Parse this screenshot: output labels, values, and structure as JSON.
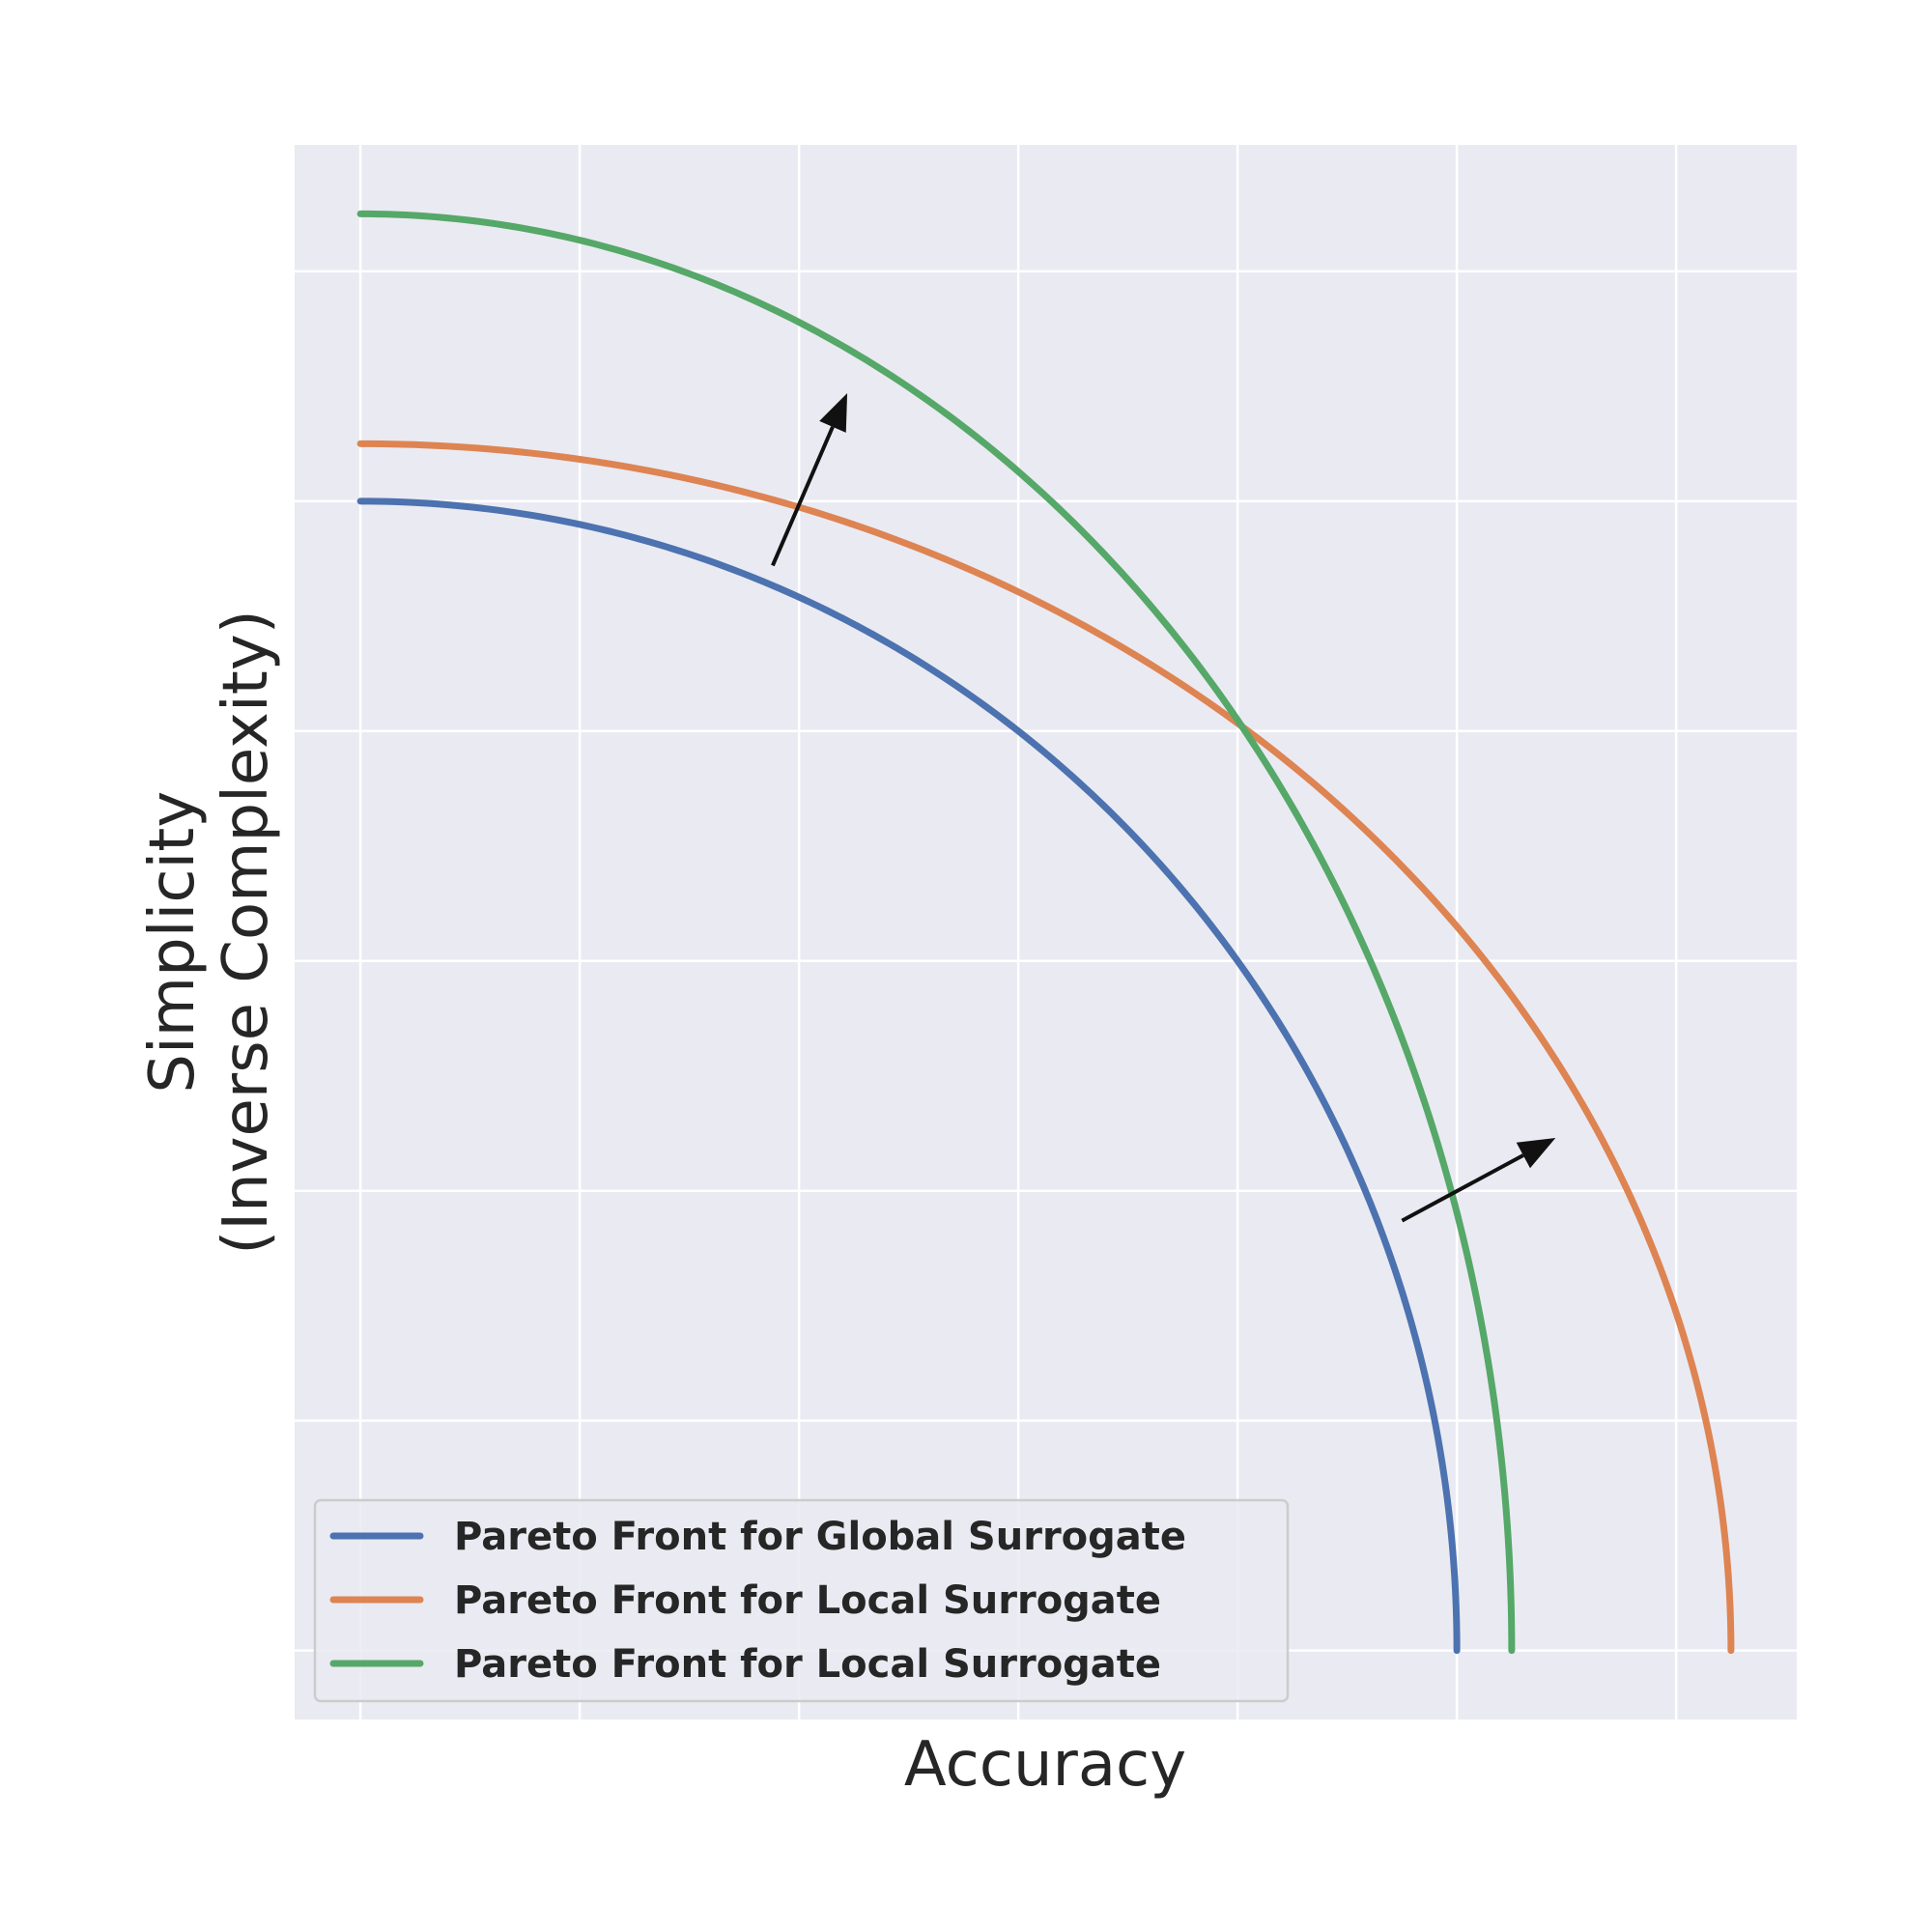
{
  "chart_data": {
    "type": "line",
    "xlabel": "Accuracy",
    "ylabel": "Simplicity\n(Inverse Complexity)",
    "xlim": [
      -0.3,
      6.55
    ],
    "ylim": [
      -0.3,
      6.55
    ],
    "xticks": [
      0,
      1,
      2,
      3,
      4,
      5,
      6
    ],
    "yticks": [
      0,
      1,
      2,
      3,
      4,
      5,
      6
    ],
    "grid": true,
    "legend_position": "lower-left",
    "series": [
      {
        "name": "Pareto Front for Global Surrogate",
        "color": "#4c72b0",
        "x_max": 5.0,
        "y_max": 5.0
      },
      {
        "name": "Pareto Front for Local Surrogate",
        "color": "#dd8452",
        "x_max": 6.25,
        "y_max": 5.25
      },
      {
        "name": "Pareto Front for Local Surrogate",
        "color": "#55a868",
        "x_max": 5.25,
        "y_max": 6.25
      }
    ],
    "annotations": [
      {
        "type": "arrow",
        "from": [
          1.88,
          4.72
        ],
        "to": [
          2.22,
          5.47
        ]
      },
      {
        "type": "arrow",
        "from": [
          4.75,
          1.87
        ],
        "to": [
          5.45,
          2.23
        ]
      }
    ]
  }
}
